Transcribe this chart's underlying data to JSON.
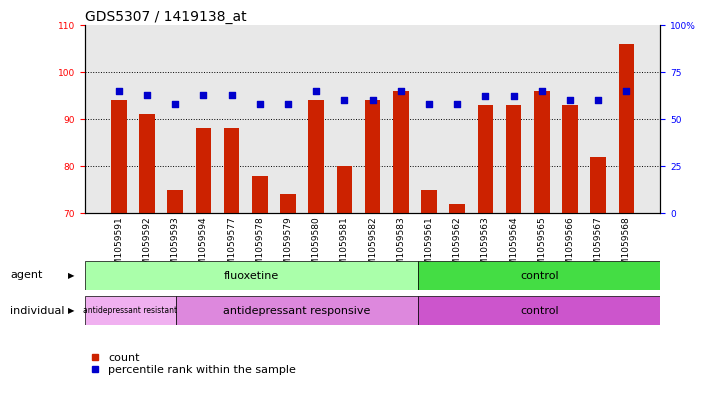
{
  "title": "GDS5307 / 1419138_at",
  "samples": [
    "GSM1059591",
    "GSM1059592",
    "GSM1059593",
    "GSM1059594",
    "GSM1059577",
    "GSM1059578",
    "GSM1059579",
    "GSM1059580",
    "GSM1059581",
    "GSM1059582",
    "GSM1059583",
    "GSM1059561",
    "GSM1059562",
    "GSM1059563",
    "GSM1059564",
    "GSM1059565",
    "GSM1059566",
    "GSM1059567",
    "GSM1059568"
  ],
  "count_values": [
    94,
    91,
    75,
    88,
    88,
    78,
    74,
    94,
    80,
    94,
    96,
    75,
    72,
    93,
    93,
    96,
    93,
    82,
    106
  ],
  "perc_vals_right": [
    65,
    63,
    58,
    63,
    63,
    58,
    58,
    65,
    60,
    60,
    65,
    58,
    58,
    62,
    62,
    65,
    60,
    60,
    65
  ],
  "ylim_left": [
    70,
    110
  ],
  "ylim_right": [
    0,
    100
  ],
  "yticks_left": [
    70,
    80,
    90,
    100,
    110
  ],
  "yticks_right": [
    0,
    25,
    50,
    75,
    100
  ],
  "ytick_labels_right": [
    "0",
    "25",
    "50",
    "75",
    "100%"
  ],
  "bar_color": "#cc2200",
  "dot_color": "#0000cc",
  "plot_bg": "#e8e8e8",
  "agent_groups": [
    {
      "label": "fluoxetine",
      "start": 0,
      "end": 11,
      "color": "#aaffaa"
    },
    {
      "label": "control",
      "start": 11,
      "end": 19,
      "color": "#44dd44"
    }
  ],
  "individual_groups": [
    {
      "label": "antidepressant resistant",
      "start": 0,
      "end": 3,
      "color": "#f0b0f0"
    },
    {
      "label": "antidepressant responsive",
      "start": 3,
      "end": 11,
      "color": "#dd88dd"
    },
    {
      "label": "control",
      "start": 11,
      "end": 19,
      "color": "#cc55cc"
    }
  ],
  "xlabel_agent": "agent",
  "xlabel_individual": "individual",
  "legend_count": "count",
  "legend_percentile": "percentile rank within the sample",
  "title_fontsize": 10,
  "tick_fontsize": 6.5,
  "label_fontsize": 8,
  "group_label_fontsize": 8
}
